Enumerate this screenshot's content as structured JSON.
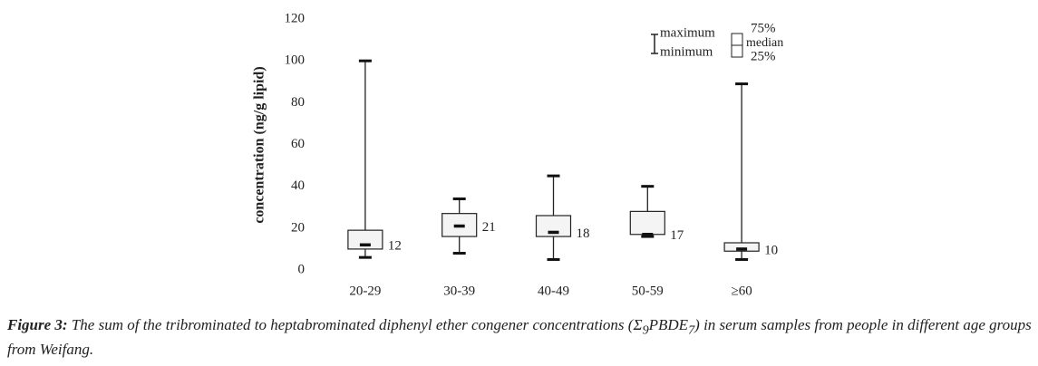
{
  "chart_data": {
    "type": "box",
    "y_label": "concentration (ng/g lipid)",
    "categories": [
      "20-29",
      "30-39",
      "40-49",
      "50-59",
      "≥60"
    ],
    "min": [
      6,
      8,
      5,
      16,
      5
    ],
    "q1": [
      10,
      16,
      16,
      17,
      9
    ],
    "median": [
      12,
      21,
      18,
      17,
      10
    ],
    "q3": [
      19,
      27,
      26,
      28,
      13
    ],
    "max": [
      100,
      34,
      45,
      40,
      89
    ],
    "ylim": [
      0,
      120
    ],
    "yticks": [
      0,
      20,
      40,
      60,
      80,
      100,
      120
    ],
    "grid": false,
    "color": "#f4f4f4",
    "legend": {
      "maximum": "maximum",
      "minimum": "minimum",
      "upper": "75%",
      "median": "median",
      "lower": "25%"
    }
  },
  "caption": {
    "label": "Figure 3:",
    "text_1": "The sum of the tribrominated to heptabrominated diphenyl ether congener concentrations (Σ",
    "sub_1": "9",
    "text_2": "PBDE",
    "sub_2": "7",
    "text_3": ") in serum samples from people in different age groups from Weifang."
  }
}
